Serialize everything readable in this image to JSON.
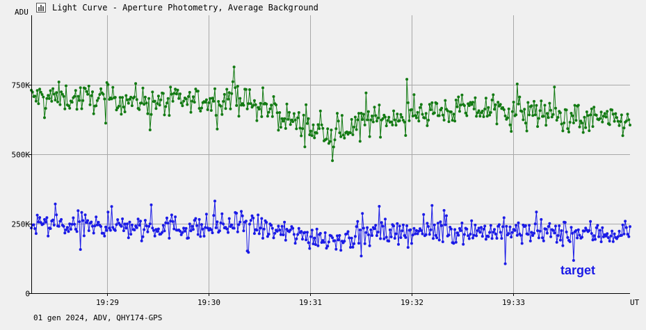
{
  "title": "Light Curve - Aperture Photometry, Average Background",
  "footer": "01 gen 2024, ADV, QHY174-GPS",
  "colors": {
    "background": "#f0f0f0",
    "grid": "#a8a8a8",
    "green_series": "#137a13",
    "blue_series": "#1a1ae6"
  },
  "chart_data": {
    "type": "line",
    "ylabel": "ADU",
    "xlabel": "UT",
    "ylim": [
      0,
      1000000
    ],
    "xlim": [
      "19:28:15",
      "19:34:09"
    ],
    "y_ticks": [
      {
        "value": 0,
        "label": "0"
      },
      {
        "value": 250000,
        "label": "250K"
      },
      {
        "value": 500000,
        "label": "500K"
      },
      {
        "value": 750000,
        "label": "750K"
      }
    ],
    "x_ticks": [
      {
        "value": "19:29:00",
        "label": "19:29"
      },
      {
        "value": "19:30:00",
        "label": "19:30"
      },
      {
        "value": "19:31:00",
        "label": "19:31"
      },
      {
        "value": "19:32:00",
        "label": "19:32"
      },
      {
        "value": "19:33:00",
        "label": "19:33"
      }
    ],
    "grid": true,
    "legend": [
      {
        "label": "target",
        "position": "bottom-right"
      }
    ],
    "series": [
      {
        "color": "#137a13",
        "trend": [
          {
            "x": "19:28:15",
            "y": 705000
          },
          {
            "x": "19:29:00",
            "y": 700000
          },
          {
            "x": "19:29:30",
            "y": 690000
          },
          {
            "x": "19:30:00",
            "y": 690000
          },
          {
            "x": "19:30:15",
            "y": 710000
          },
          {
            "x": "19:30:30",
            "y": 665000
          },
          {
            "x": "19:30:45",
            "y": 635000
          },
          {
            "x": "19:31:00",
            "y": 590000
          },
          {
            "x": "19:31:15",
            "y": 560000
          },
          {
            "x": "19:31:25",
            "y": 610000
          },
          {
            "x": "19:31:45",
            "y": 630000
          },
          {
            "x": "19:32:00",
            "y": 650000
          },
          {
            "x": "19:32:30",
            "y": 660000
          },
          {
            "x": "19:33:00",
            "y": 660000
          },
          {
            "x": "19:33:30",
            "y": 635000
          },
          {
            "x": "19:34:09",
            "y": 615000
          }
        ],
        "scatter": 45000
      },
      {
        "color": "#1a1ae6",
        "trend": [
          {
            "x": "19:28:15",
            "y": 245000
          },
          {
            "x": "19:29:00",
            "y": 240000
          },
          {
            "x": "19:29:30",
            "y": 240000
          },
          {
            "x": "19:30:00",
            "y": 235000
          },
          {
            "x": "19:30:20",
            "y": 250000
          },
          {
            "x": "19:30:45",
            "y": 215000
          },
          {
            "x": "19:31:00",
            "y": 205000
          },
          {
            "x": "19:31:15",
            "y": 195000
          },
          {
            "x": "19:31:30",
            "y": 210000
          },
          {
            "x": "19:32:00",
            "y": 220000
          },
          {
            "x": "19:32:30",
            "y": 225000
          },
          {
            "x": "19:33:00",
            "y": 220000
          },
          {
            "x": "19:33:30",
            "y": 215000
          },
          {
            "x": "19:34:09",
            "y": 215000
          }
        ],
        "scatter": 40000
      }
    ]
  }
}
